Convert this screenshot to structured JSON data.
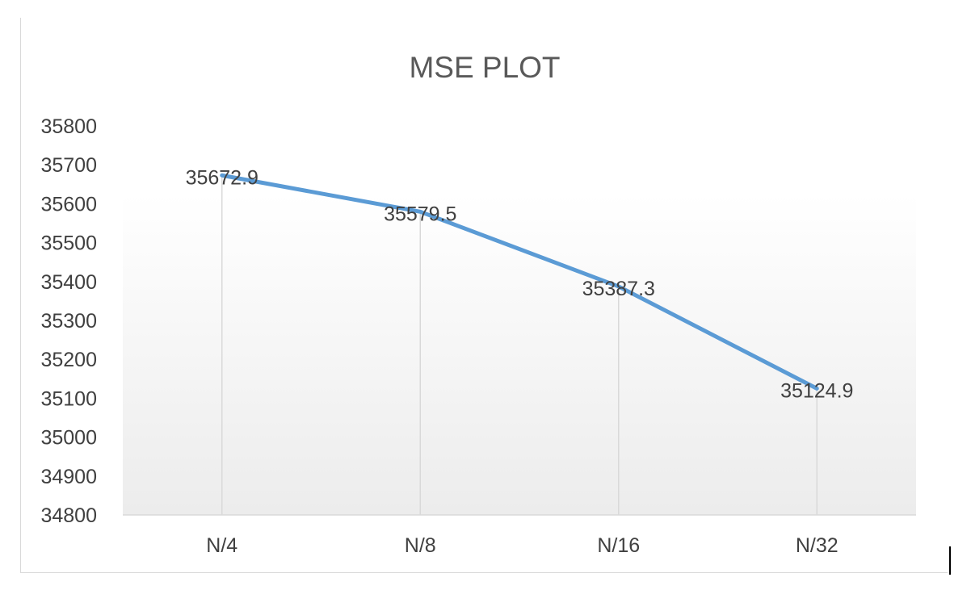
{
  "chart_data": {
    "type": "line",
    "title": "MSE PLOT",
    "xlabel": "",
    "ylabel": "",
    "categories": [
      "N/4",
      "N/8",
      "N/16",
      "N/32"
    ],
    "series": [
      {
        "values": [
          35672.9,
          35579.5,
          35387.3,
          35124.9
        ],
        "data_labels": [
          "35672.9",
          "35579.5",
          "35387.3",
          "35124.9"
        ]
      }
    ],
    "ylim": [
      34800,
      35800
    ],
    "yticks": [
      "35800",
      "35700",
      "35600",
      "35500",
      "35400",
      "35300",
      "35200",
      "35100",
      "35000",
      "34900",
      "34800"
    ],
    "grid": "vertical drop lines",
    "legend": "none",
    "colors": {
      "line": "#5b9bd5",
      "text": "#404040",
      "title": "#595959",
      "axis": "#d9d9d9",
      "dropline": "#d9d9d9"
    }
  }
}
